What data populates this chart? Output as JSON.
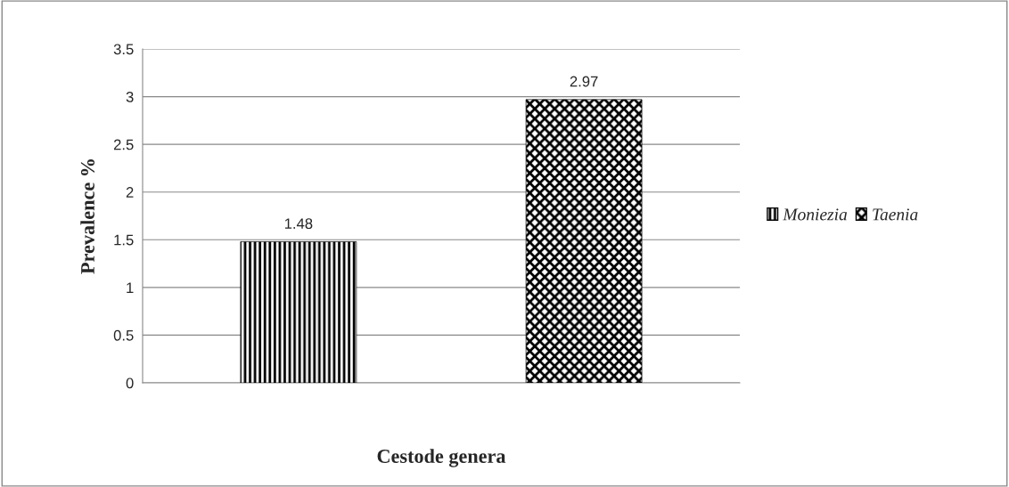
{
  "chart_data": {
    "type": "bar",
    "xlabel": "Cestode genera",
    "ylabel": "Prevalence %",
    "categories": [
      null
    ],
    "series": [
      {
        "name": "Moniezia",
        "color": "#000000",
        "values": [
          1.48
        ]
      },
      {
        "name": "Taenia",
        "color": "#000000",
        "values": [
          2.97
        ]
      }
    ],
    "ylim": [
      0,
      3.5
    ],
    "yticks": [
      0,
      0.5,
      1,
      1.5,
      2,
      2.5,
      3,
      3.5
    ],
    "grid": "y",
    "legend": "right",
    "data_labels": true
  }
}
